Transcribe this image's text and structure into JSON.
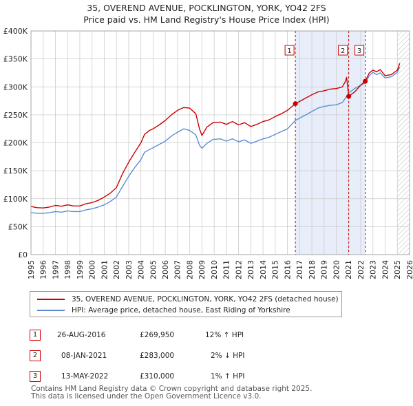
{
  "title": {
    "line1": "35, OVEREND AVENUE, POCKLINGTON, YORK, YO42 2FS",
    "line2": "Price paid vs. HM Land Registry's House Price Index (HPI)"
  },
  "chart_data": {
    "type": "line",
    "xlim": [
      1995,
      2026
    ],
    "ylim": [
      0,
      400000
    ],
    "y_ticks": [
      0,
      50000,
      100000,
      150000,
      200000,
      250000,
      300000,
      350000,
      400000
    ],
    "y_tick_labels": [
      "£0",
      "£50K",
      "£100K",
      "£150K",
      "£200K",
      "£250K",
      "£300K",
      "£350K",
      "£400K"
    ],
    "x_ticks": [
      1995,
      1996,
      1997,
      1998,
      1999,
      2000,
      2001,
      2002,
      2003,
      2004,
      2005,
      2006,
      2007,
      2008,
      2009,
      2010,
      2011,
      2012,
      2013,
      2014,
      2015,
      2016,
      2017,
      2018,
      2019,
      2020,
      2021,
      2022,
      2023,
      2024,
      2025,
      2026
    ],
    "x_tick_labels": [
      "1995",
      "1996",
      "1997",
      "1998",
      "1999",
      "2000",
      "2001",
      "2002",
      "2003",
      "2004",
      "2005",
      "2006",
      "2007",
      "2008",
      "2009",
      "2010",
      "2011",
      "2012",
      "2013",
      "2014",
      "2015",
      "2016",
      "2017",
      "2018",
      "2019",
      "2020",
      "2021",
      "2022",
      "2023",
      "2024",
      "2025",
      "2026"
    ],
    "shaded_ranges": [
      [
        2016.65,
        2022.37
      ]
    ],
    "future_start": 2025.0,
    "series": [
      {
        "name": "35, OVEREND AVENUE, POCKLINGTON, YORK, YO42 2FS (detached house)",
        "color": "#cc0000",
        "points": [
          [
            1995.0,
            86000
          ],
          [
            1995.5,
            84000
          ],
          [
            1996.0,
            83500
          ],
          [
            1996.5,
            85000
          ],
          [
            1997.0,
            88000
          ],
          [
            1997.5,
            86500
          ],
          [
            1998.0,
            89000
          ],
          [
            1998.5,
            87000
          ],
          [
            1999.0,
            87000
          ],
          [
            1999.5,
            91000
          ],
          [
            2000.0,
            93000
          ],
          [
            2000.5,
            97000
          ],
          [
            2001.0,
            103000
          ],
          [
            2001.5,
            110000
          ],
          [
            2002.0,
            120000
          ],
          [
            2002.5,
            145000
          ],
          [
            2003.0,
            165000
          ],
          [
            2003.5,
            183000
          ],
          [
            2004.0,
            200000
          ],
          [
            2004.3,
            215000
          ],
          [
            2004.7,
            222000
          ],
          [
            2005.0,
            225000
          ],
          [
            2005.5,
            232000
          ],
          [
            2006.0,
            240000
          ],
          [
            2006.5,
            250000
          ],
          [
            2007.0,
            258000
          ],
          [
            2007.5,
            263000
          ],
          [
            2008.0,
            262000
          ],
          [
            2008.5,
            252000
          ],
          [
            2008.8,
            225000
          ],
          [
            2009.0,
            213000
          ],
          [
            2009.4,
            228000
          ],
          [
            2009.9,
            236000
          ],
          [
            2010.5,
            237000
          ],
          [
            2011.0,
            233000
          ],
          [
            2011.5,
            238000
          ],
          [
            2012.0,
            232000
          ],
          [
            2012.5,
            236000
          ],
          [
            2013.0,
            229000
          ],
          [
            2013.5,
            233000
          ],
          [
            2014.0,
            238000
          ],
          [
            2014.5,
            241000
          ],
          [
            2015.0,
            247000
          ],
          [
            2015.5,
            252000
          ],
          [
            2016.0,
            258000
          ],
          [
            2016.65,
            269950
          ],
          [
            2017.0,
            274000
          ],
          [
            2017.5,
            280000
          ],
          [
            2018.0,
            286000
          ],
          [
            2018.5,
            291000
          ],
          [
            2019.0,
            293000
          ],
          [
            2019.5,
            296000
          ],
          [
            2020.0,
            297000
          ],
          [
            2020.5,
            300000
          ],
          [
            2020.75,
            310000
          ],
          [
            2020.85,
            317000
          ],
          [
            2021.02,
            283000
          ],
          [
            2021.5,
            291000
          ],
          [
            2022.0,
            303000
          ],
          [
            2022.37,
            310000
          ],
          [
            2022.7,
            325000
          ],
          [
            2023.0,
            330000
          ],
          [
            2023.3,
            327000
          ],
          [
            2023.6,
            331000
          ],
          [
            2024.0,
            320000
          ],
          [
            2024.5,
            322000
          ],
          [
            2025.0,
            330000
          ],
          [
            2025.2,
            342000
          ]
        ]
      },
      {
        "name": "HPI: Average price, detached house, East Riding of Yorkshire",
        "color": "#5b8ed6",
        "points": [
          [
            1995.0,
            75000
          ],
          [
            1995.5,
            74000
          ],
          [
            1996.0,
            74000
          ],
          [
            1996.5,
            75000
          ],
          [
            1997.0,
            77000
          ],
          [
            1997.5,
            76000
          ],
          [
            1998.0,
            78000
          ],
          [
            1998.5,
            77000
          ],
          [
            1999.0,
            77000
          ],
          [
            1999.5,
            80000
          ],
          [
            2000.0,
            82000
          ],
          [
            2000.5,
            85000
          ],
          [
            2001.0,
            89000
          ],
          [
            2001.5,
            95000
          ],
          [
            2002.0,
            103000
          ],
          [
            2002.5,
            122000
          ],
          [
            2003.0,
            140000
          ],
          [
            2003.5,
            156000
          ],
          [
            2004.0,
            170000
          ],
          [
            2004.3,
            183000
          ],
          [
            2004.7,
            188000
          ],
          [
            2005.0,
            191000
          ],
          [
            2005.5,
            197000
          ],
          [
            2006.0,
            203000
          ],
          [
            2006.5,
            212000
          ],
          [
            2007.0,
            219000
          ],
          [
            2007.5,
            225000
          ],
          [
            2008.0,
            222000
          ],
          [
            2008.5,
            214000
          ],
          [
            2008.8,
            196000
          ],
          [
            2009.0,
            190000
          ],
          [
            2009.4,
            199000
          ],
          [
            2009.9,
            206000
          ],
          [
            2010.5,
            207000
          ],
          [
            2011.0,
            203000
          ],
          [
            2011.5,
            207000
          ],
          [
            2012.0,
            202000
          ],
          [
            2012.5,
            205000
          ],
          [
            2013.0,
            199000
          ],
          [
            2013.5,
            203000
          ],
          [
            2014.0,
            207000
          ],
          [
            2014.5,
            210000
          ],
          [
            2015.0,
            215000
          ],
          [
            2015.5,
            220000
          ],
          [
            2016.0,
            225000
          ],
          [
            2016.65,
            240000
          ],
          [
            2017.0,
            244000
          ],
          [
            2017.5,
            250000
          ],
          [
            2018.0,
            256000
          ],
          [
            2018.5,
            262000
          ],
          [
            2019.0,
            265000
          ],
          [
            2019.5,
            267000
          ],
          [
            2020.0,
            268000
          ],
          [
            2020.5,
            272000
          ],
          [
            2020.75,
            280000
          ],
          [
            2021.02,
            289000
          ],
          [
            2021.5,
            297000
          ],
          [
            2022.0,
            303000
          ],
          [
            2022.37,
            307000
          ],
          [
            2022.7,
            320000
          ],
          [
            2023.0,
            326000
          ],
          [
            2023.3,
            322000
          ],
          [
            2023.6,
            325000
          ],
          [
            2024.0,
            316000
          ],
          [
            2024.5,
            318000
          ],
          [
            2025.0,
            326000
          ],
          [
            2025.2,
            336000
          ]
        ]
      }
    ],
    "sales": [
      {
        "label": "1",
        "x": 2016.65,
        "y": 269950
      },
      {
        "label": "2",
        "x": 2021.02,
        "y": 283000
      },
      {
        "label": "3",
        "x": 2022.37,
        "y": 310000
      }
    ]
  },
  "legend": {
    "red_label": "35, OVEREND AVENUE, POCKLINGTON, YORK, YO42 2FS (detached house)",
    "blue_label": "HPI: Average price, detached house, East Riding of Yorkshire"
  },
  "sales_table": [
    {
      "num": "1",
      "date": "26-AUG-2016",
      "price": "£269,950",
      "hpi": "12% ↑ HPI"
    },
    {
      "num": "2",
      "date": "08-JAN-2021",
      "price": "£283,000",
      "hpi": "2% ↓ HPI"
    },
    {
      "num": "3",
      "date": "13-MAY-2022",
      "price": "£310,000",
      "hpi": "1% ↑ HPI"
    }
  ],
  "footer": {
    "line1": "Contains HM Land Registry data © Crown copyright and database right 2025.",
    "line2": "This data is licensed under the Open Government Licence v3.0."
  }
}
